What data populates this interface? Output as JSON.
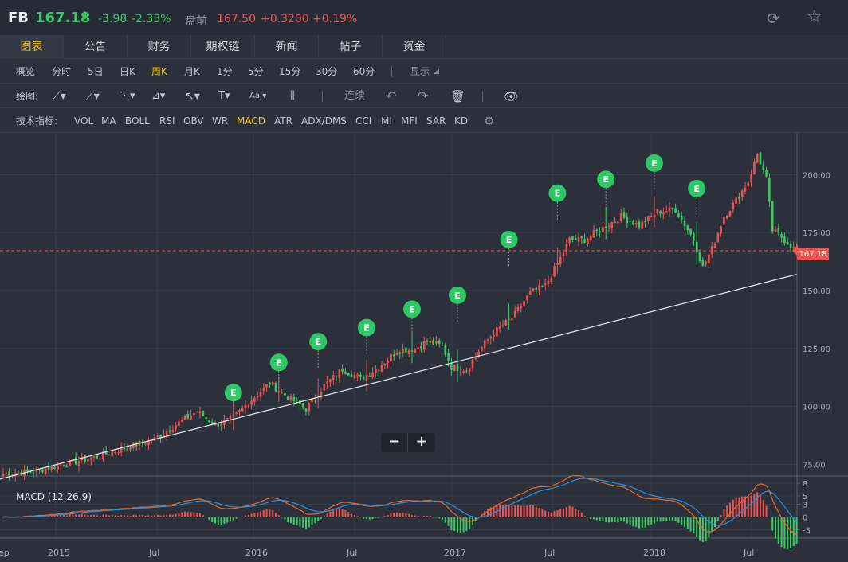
{
  "header": {
    "symbol": "FB",
    "price": "167.18",
    "arrow": "⬇",
    "change": "-3.98",
    "change_pct": "-2.33%",
    "premarket_label": "盘前",
    "premarket_price": "167.50",
    "premarket_change": "+0.3200",
    "premarket_change_pct": "+0.19%",
    "refresh_icon": "refresh-icon",
    "star_icon": "star-icon"
  },
  "tabs": [
    "图表",
    "公告",
    "财务",
    "期权链",
    "新闻",
    "帖子",
    "资金"
  ],
  "active_tab": "图表",
  "periods": {
    "items": [
      "概览",
      "分时",
      "5日",
      "日K",
      "周K",
      "月K",
      "1分",
      "5分",
      "15分",
      "30分",
      "60分"
    ],
    "active": "周K",
    "display_label": "显示"
  },
  "drawing": {
    "label": "绘图:",
    "continuous_label": "连续",
    "icons": [
      "line-tool-icon",
      "ray-tool-icon",
      "channel-tool-icon",
      "pattern-tool-icon",
      "arrow-tool-icon",
      "text-tool-icon",
      "font-tool-icon",
      "bars-tool-icon",
      "undo-icon",
      "redo-icon",
      "trash-icon",
      "eye-icon"
    ]
  },
  "indicators": {
    "label": "技术指标:",
    "items": [
      "VOL",
      "MA",
      "BOLL",
      "RSI",
      "OBV",
      "WR",
      "MACD",
      "ATR",
      "ADX/DMS",
      "CCI",
      "MI",
      "MFI",
      "SAR",
      "KD"
    ],
    "active": "MACD",
    "settings_icon": "gear-icon"
  },
  "chart_data": {
    "type": "candlestick",
    "price_axis": {
      "ticks": [
        "200.00",
        "175.00",
        "150.00",
        "125.00",
        "100.00",
        "75.00"
      ],
      "ylim": [
        70,
        218
      ]
    },
    "current_price_tag": "167.18",
    "x_axis": {
      "labels": [
        "ep",
        "2015",
        "Jul",
        "2016",
        "Jul",
        "2017",
        "Jul",
        "2018",
        "Jul"
      ]
    },
    "earnings_marker": "E",
    "colors": {
      "up": "#ef5350",
      "down": "#3ccb63",
      "bg": "#2b303b",
      "grid": "#353b47",
      "dif": "#e8692e",
      "dea": "#2f8fe0"
    },
    "macd": {
      "label": "MACD (12,26,9)",
      "ticks": [
        "8",
        "5",
        "3",
        "0",
        "-3"
      ],
      "ylim": [
        -5,
        9.5
      ]
    },
    "zoom": {
      "minus": "−",
      "plus": "+"
    },
    "series_anchor_prices": [
      [
        0,
        71
      ],
      [
        10,
        72
      ],
      [
        20,
        75
      ],
      [
        30,
        78
      ],
      [
        40,
        82
      ],
      [
        50,
        86
      ],
      [
        58,
        93
      ],
      [
        64,
        98
      ],
      [
        70,
        92
      ],
      [
        76,
        95
      ],
      [
        82,
        103
      ],
      [
        88,
        110
      ],
      [
        94,
        104
      ],
      [
        100,
        99
      ],
      [
        106,
        109
      ],
      [
        112,
        116
      ],
      [
        118,
        112
      ],
      [
        124,
        117
      ],
      [
        130,
        124
      ],
      [
        136,
        125
      ],
      [
        140,
        128
      ],
      [
        145,
        126
      ],
      [
        148,
        117
      ],
      [
        153,
        116
      ],
      [
        157,
        124
      ],
      [
        162,
        132
      ],
      [
        168,
        138
      ],
      [
        174,
        149
      ],
      [
        179,
        152
      ],
      [
        184,
        164
      ],
      [
        187,
        172
      ],
      [
        192,
        172
      ],
      [
        198,
        177
      ],
      [
        204,
        182
      ],
      [
        210,
        178
      ],
      [
        216,
        184
      ],
      [
        222,
        185
      ],
      [
        228,
        172
      ],
      [
        231,
        160
      ],
      [
        234,
        168
      ],
      [
        238,
        182
      ],
      [
        242,
        189
      ],
      [
        246,
        197
      ],
      [
        249,
        209
      ],
      [
        252,
        198
      ],
      [
        254,
        176
      ],
      [
        257,
        173
      ],
      [
        262,
        167
      ]
    ],
    "earnings_events": [
      {
        "idx": 76,
        "price": 90,
        "label": "E"
      },
      {
        "idx": 91,
        "price": 103,
        "label": "E"
      },
      {
        "idx": 104,
        "price": 112,
        "label": "E"
      },
      {
        "idx": 120,
        "price": 118,
        "label": "E"
      },
      {
        "idx": 135,
        "price": 126,
        "label": "E"
      },
      {
        "idx": 150,
        "price": 132,
        "label": "E"
      },
      {
        "idx": 167,
        "price": 156,
        "label": "E"
      },
      {
        "idx": 183,
        "price": 176,
        "label": "E"
      },
      {
        "idx": 199,
        "price": 182,
        "label": "E"
      },
      {
        "idx": 215,
        "price": 189,
        "label": "E"
      },
      {
        "idx": 229,
        "price": 178,
        "label": "E"
      }
    ],
    "trendline": [
      {
        "idx": 0,
        "price": 71
      },
      {
        "idx": 262,
        "price": 157
      }
    ]
  }
}
